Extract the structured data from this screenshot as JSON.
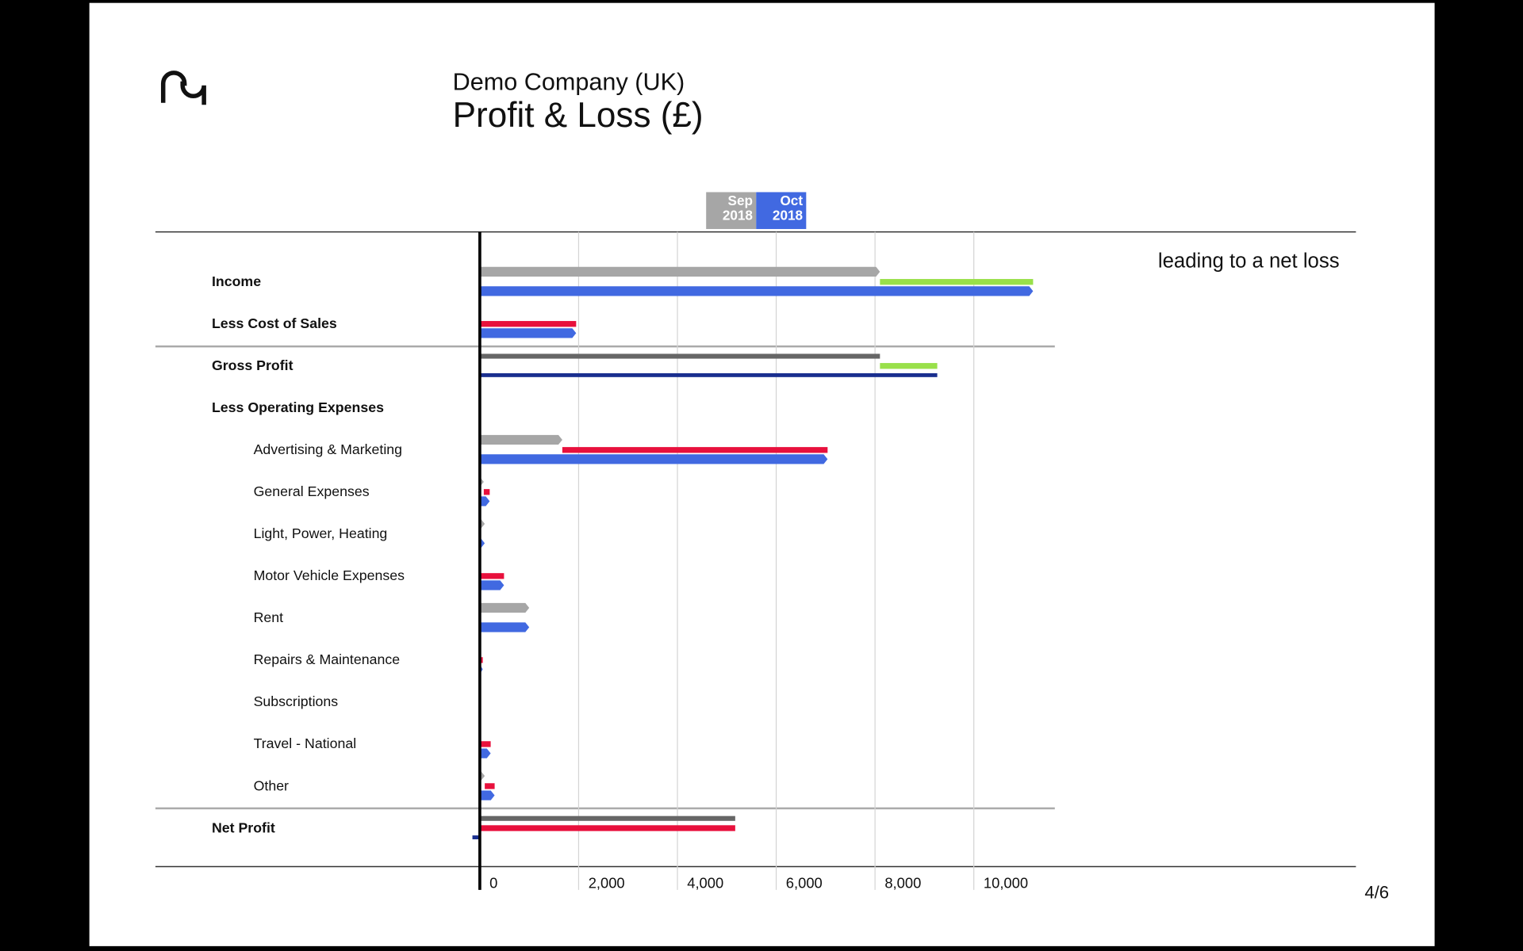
{
  "chart_data": {
    "type": "bar",
    "company": "Demo Company (UK)",
    "title": "Profit & Loss (£)",
    "annotation": "leading to a net loss",
    "page_number": "4/6",
    "periods": [
      {
        "month": "Sep",
        "year": "2018"
      },
      {
        "month": "Oct",
        "year": "2018"
      }
    ],
    "categories": [
      "Income",
      "Less Cost of Sales",
      "Gross Profit",
      "Less Operating Expenses",
      "Advertising & Marketing",
      "General Expenses",
      "Light, Power, Heating",
      "Motor Vehicle Expenses",
      "Rent",
      "Repairs & Maintenance",
      "Subscriptions",
      "Travel - National",
      "Other",
      "Net Profit"
    ],
    "bold": [
      true,
      true,
      true,
      true,
      false,
      false,
      false,
      false,
      false,
      false,
      false,
      false,
      false,
      true
    ],
    "total": [
      false,
      false,
      true,
      false,
      false,
      false,
      false,
      false,
      false,
      false,
      false,
      false,
      false,
      true
    ],
    "series": [
      {
        "color": "#a6a6a6",
        "total_color": "#666666",
        "values": [
          8100,
          0,
          8100,
          null,
          1670,
          80,
          100,
          0,
          1000,
          0,
          0,
          0,
          100,
          5170
        ]
      },
      {
        "color": "#4169e1",
        "total_color": "#1a2f8f",
        "values": [
          11200,
          1950,
          9260,
          null,
          7040,
          200,
          100,
          490,
          1000,
          60,
          0,
          220,
          300,
          -150
        ]
      }
    ],
    "change_colors": [
      "#99e04a",
      "#e8103c",
      "#99e04a",
      null,
      "#e8103c",
      "#e8103c",
      null,
      "#e8103c",
      null,
      "#e8103c",
      null,
      "#e8103c",
      "#e8103c",
      "#e8103c"
    ],
    "xlim": [
      0,
      11640
    ],
    "xticks": [
      0,
      {
        "value": 2000,
        "label": "2,000"
      },
      {
        "value": 4000,
        "label": "4,000"
      },
      {
        "value": 6000,
        "label": "6,000"
      },
      {
        "value": 8000,
        "label": "8,000"
      },
      {
        "value": 10000,
        "label": "10,000"
      }
    ],
    "grid": true
  }
}
